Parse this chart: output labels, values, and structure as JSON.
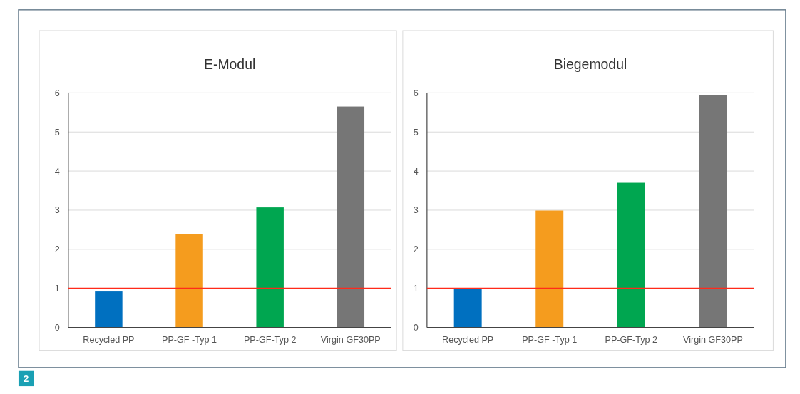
{
  "chart_data": [
    {
      "type": "bar",
      "title": "E-Modul",
      "categories": [
        "Recycled PP",
        "PP-GF -Typ 1",
        "PP-GF-Typ 2",
        "Virgin GF30PP"
      ],
      "values": [
        0.92,
        2.39,
        3.07,
        5.65
      ],
      "colors": [
        "#0070c0",
        "#f59c1e",
        "#00a650",
        "#767676"
      ],
      "ylim": [
        0,
        6
      ],
      "yticks": [
        0,
        1,
        2,
        3,
        4,
        5,
        6
      ],
      "grid": "y",
      "ref_lines": [
        {
          "axis": "y",
          "value": 1,
          "color": "#ff2a1a"
        }
      ],
      "annotations": [
        "2"
      ]
    },
    {
      "type": "bar",
      "title": "Biegemodul",
      "categories": [
        "Recycled PP",
        "PP-GF -Typ 1",
        "PP-GF-Typ 2",
        "Virgin GF30PP"
      ],
      "values": [
        0.98,
        2.99,
        3.7,
        5.94
      ],
      "colors": [
        "#0070c0",
        "#f59c1e",
        "#00a650",
        "#767676"
      ],
      "ylim": [
        0,
        6
      ],
      "yticks": [
        0,
        1,
        2,
        3,
        4,
        5,
        6
      ],
      "grid": "y",
      "ref_lines": [
        {
          "axis": "y",
          "value": 1,
          "color": "#ff2a1a"
        }
      ]
    }
  ]
}
